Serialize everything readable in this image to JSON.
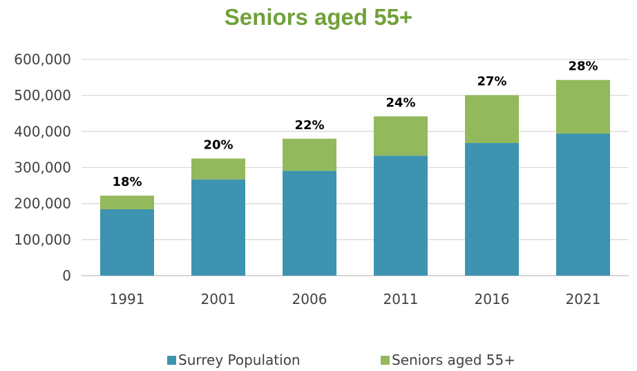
{
  "chart_data": {
    "type": "bar",
    "stacked": true,
    "title": "Seniors aged 55+",
    "categories": [
      "1991",
      "2001",
      "2006",
      "2011",
      "2016",
      "2021"
    ],
    "series": [
      {
        "name": "Surrey Population",
        "color": "#3d93b0",
        "values": [
          184000,
          267000,
          291000,
          333000,
          368000,
          394000
        ]
      },
      {
        "name": "Seniors aged 55+",
        "color": "#93b95c",
        "values": [
          38000,
          58000,
          89000,
          109000,
          133000,
          149000
        ]
      }
    ],
    "data_labels": [
      "18%",
      "20%",
      "22%",
      "24%",
      "27%",
      "28%"
    ],
    "ylim": [
      0,
      600000
    ],
    "yticks": [
      "0",
      "100,000",
      "200,000",
      "300,000",
      "400,000",
      "500,000",
      "600,000"
    ],
    "grid": true,
    "legend_position": "bottom",
    "title_color": "#70a13a"
  }
}
